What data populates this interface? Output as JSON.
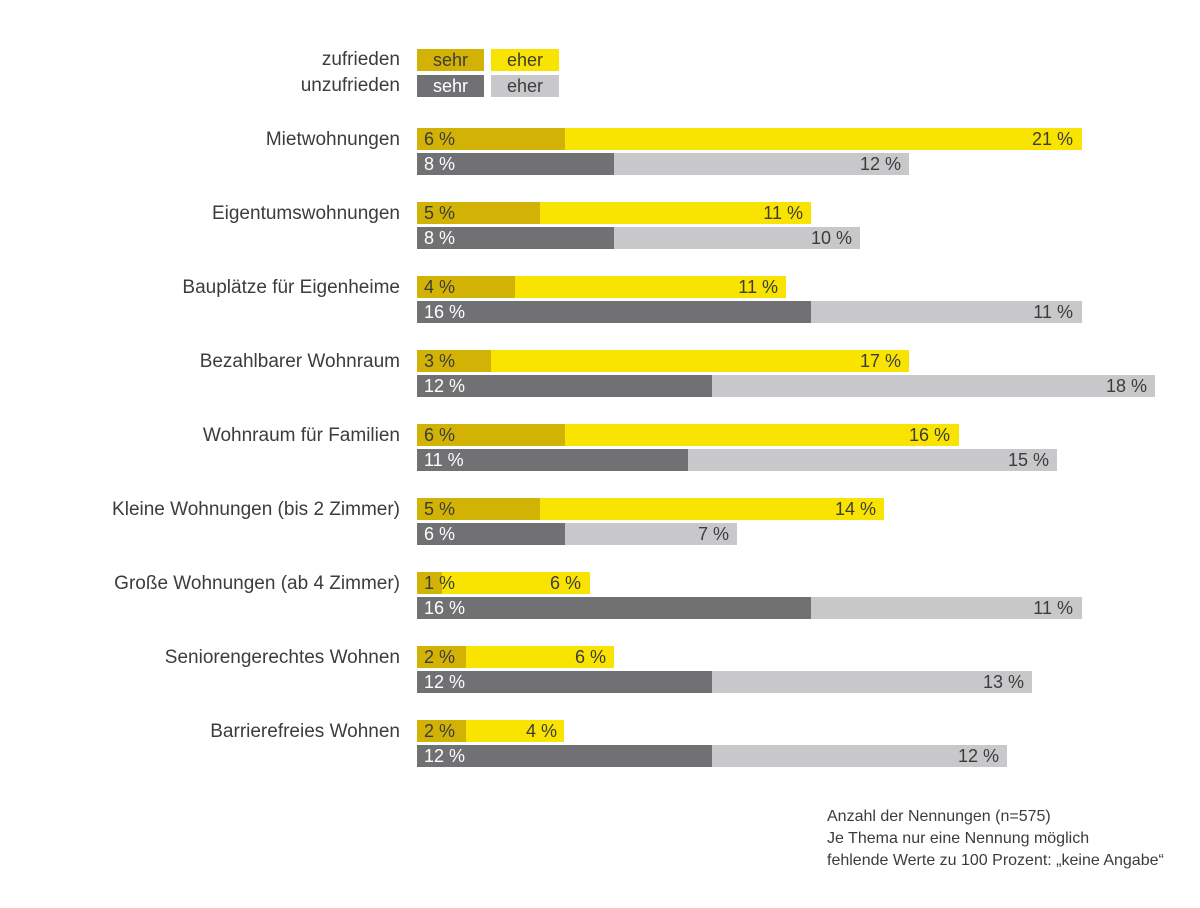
{
  "legend": {
    "satisfied_label": "zufrieden",
    "unsatisfied_label": "unzufrieden",
    "sehr_label": "sehr",
    "eher_label": "eher"
  },
  "colors": {
    "sehr_zufrieden": "#d2b305",
    "eher_zufrieden": "#f9e300",
    "sehr_unzufrieden": "#717174",
    "eher_unzufrieden": "#c8c8ca",
    "text": "#3c3c3c",
    "text_on_dark": "#ffffff",
    "background": "#ffffff"
  },
  "chart_data": {
    "type": "bar",
    "orientation": "horizontal",
    "unit": "%",
    "value_labels": "inside-bars",
    "grid": false,
    "axes_visible": false,
    "legend_position": "top-left",
    "categories": [
      "Mietwohnungen",
      "Eigentumswohnungen",
      "Bauplätze für Eigenheime",
      "Bezahlbarer Wohnraum",
      "Wohnraum für Familien",
      "Kleine Wohnungen (bis 2 Zimmer)",
      "Große Wohnungen (ab 4 Zimmer)",
      "Seniorengerechtes Wohnen",
      "Barrierefreies Wohnen"
    ],
    "series": [
      {
        "name": "sehr zufrieden",
        "values": [
          6,
          5,
          4,
          3,
          6,
          5,
          1,
          2,
          2
        ]
      },
      {
        "name": "eher zufrieden",
        "values": [
          21,
          11,
          11,
          17,
          16,
          14,
          6,
          6,
          4
        ]
      },
      {
        "name": "sehr unzufrieden",
        "values": [
          8,
          8,
          16,
          12,
          11,
          6,
          16,
          12,
          12
        ]
      },
      {
        "name": "eher unzufrieden",
        "values": [
          12,
          10,
          11,
          18,
          15,
          7,
          11,
          13,
          12
        ]
      }
    ]
  },
  "footer": {
    "lines": [
      "Anzahl der Nennungen (n=575)",
      "Je Thema nur eine Nennung möglich",
      "fehlende Werte zu 100 Prozent: „keine Angabe“"
    ]
  }
}
